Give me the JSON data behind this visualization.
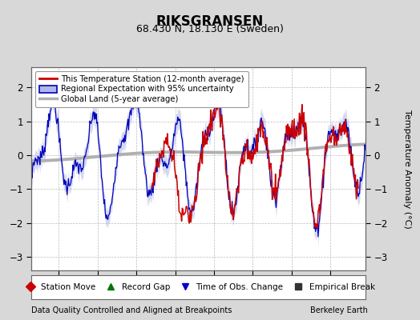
{
  "title": "RIKSGRANSEN",
  "subtitle": "68.430 N, 18.130 E (Sweden)",
  "ylabel": "Temperature Anomaly (°C)",
  "footer_left": "Data Quality Controlled and Aligned at Breakpoints",
  "footer_right": "Berkeley Earth",
  "xlim": [
    1946.5,
    1989.5
  ],
  "ylim": [
    -3.4,
    2.6
  ],
  "yticks": [
    -3,
    -2,
    -1,
    0,
    1,
    2
  ],
  "xticks": [
    1950,
    1955,
    1960,
    1965,
    1970,
    1975,
    1980,
    1985
  ],
  "bg_color": "#d8d8d8",
  "plot_bg_color": "#ffffff",
  "grid_color": "#bbbbbb",
  "red_color": "#cc0000",
  "blue_color": "#0000bb",
  "blue_fill_color": "#b0b8e8",
  "gray_color": "#b0b0b0",
  "legend_items": [
    "This Temperature Station (12-month average)",
    "Regional Expectation with 95% uncertainty",
    "Global Land (5-year average)"
  ],
  "bottom_legend": [
    {
      "marker": "D",
      "color": "#cc0000",
      "label": "Station Move"
    },
    {
      "marker": "^",
      "color": "#007700",
      "label": "Record Gap"
    },
    {
      "marker": "v",
      "color": "#0000cc",
      "label": "Time of Obs. Change"
    },
    {
      "marker": "s",
      "color": "#333333",
      "label": "Empirical Break"
    }
  ]
}
